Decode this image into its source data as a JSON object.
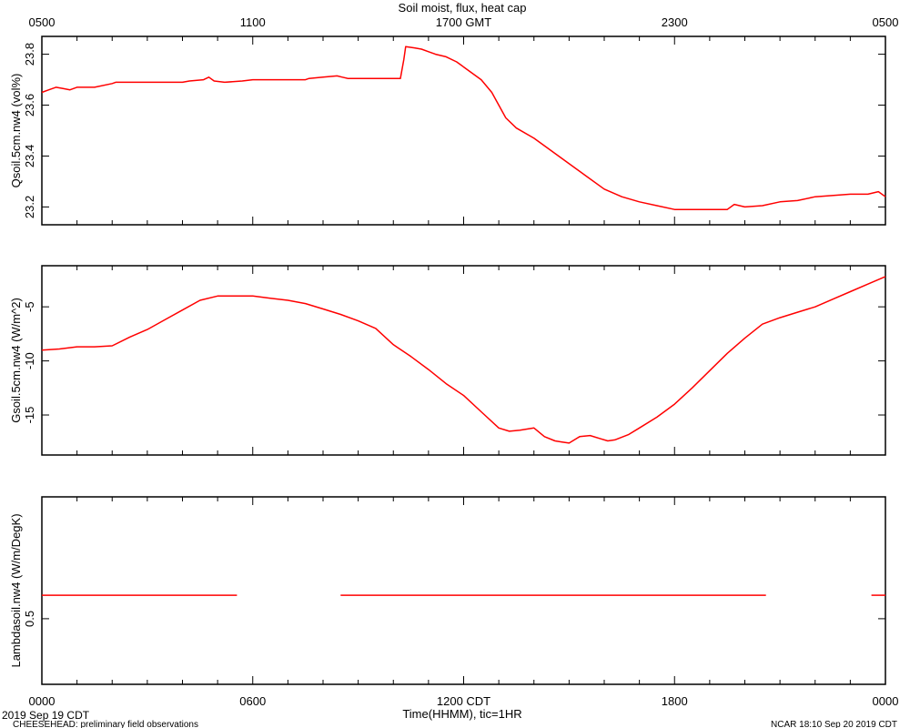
{
  "title": "Soil moist, flux, heat cap",
  "top_axis": {
    "ticks": [
      {
        "hour": 0,
        "label": "0500"
      },
      {
        "hour": 6,
        "label": "1100"
      },
      {
        "hour": 12,
        "label": "1700 GMT"
      },
      {
        "hour": 18,
        "label": "2300"
      },
      {
        "hour": 24,
        "label": "0500"
      }
    ]
  },
  "bottom_axis": {
    "ticks": [
      {
        "hour": 0,
        "label": "0000"
      },
      {
        "hour": 6,
        "label": "0600"
      },
      {
        "hour": 12,
        "label": "1200 CDT"
      },
      {
        "hour": 18,
        "label": "1800"
      },
      {
        "hour": 24,
        "label": "0000"
      }
    ],
    "xlabel": "Time(HHMM), tic=1HR"
  },
  "footer": {
    "date_left": "2019 Sep 19 CDT",
    "project": "CHEESEHEAD: preliminary field observations",
    "credit": "NCAR 18:10 Sep 20 2019 CDT"
  },
  "colors": {
    "series": "#ff0000",
    "axis": "#000000"
  },
  "chart_data": [
    {
      "type": "line",
      "ylabel": "Qsoil.5cm.nw4 (vol%)",
      "ylim": [
        23.13,
        23.87
      ],
      "yticks": [
        23.2,
        23.4,
        23.6,
        23.8
      ],
      "ytick_labels": [
        "23.2",
        "23.4",
        "23.6",
        "23.8"
      ],
      "x_unit": "hours after 0000 CDT",
      "series": [
        {
          "x": [
            0,
            0.2,
            0.4,
            0.6,
            0.8,
            1.0,
            1.2,
            1.5,
            2.0,
            2.1,
            2.3,
            3.0,
            3.5,
            4.0,
            4.2,
            4.6,
            4.75,
            4.9,
            5.2,
            5.7,
            6.0,
            6.5,
            7.0,
            7.5,
            7.6,
            8.0,
            8.4,
            8.55,
            8.7,
            9.0,
            9.5,
            10.2,
            10.3,
            10.35,
            10.6,
            10.8,
            11.0,
            11.2,
            11.5,
            11.8,
            12.0,
            12.5,
            12.8,
            13.0,
            13.2,
            13.5,
            14.0,
            14.5,
            15.0,
            15.5,
            16.0,
            16.5,
            17.0,
            17.5,
            18.0,
            18.5,
            19.0,
            19.5,
            19.7,
            20.0,
            20.5,
            21.0,
            21.5,
            22.0,
            23.0,
            23.5,
            23.8,
            24.0
          ],
          "y": [
            23.65,
            23.66,
            23.67,
            23.665,
            23.66,
            23.67,
            23.67,
            23.67,
            23.685,
            23.69,
            23.69,
            23.69,
            23.69,
            23.69,
            23.695,
            23.7,
            23.71,
            23.695,
            23.69,
            23.695,
            23.7,
            23.7,
            23.7,
            23.7,
            23.705,
            23.71,
            23.715,
            23.71,
            23.705,
            23.705,
            23.705,
            23.705,
            23.78,
            23.83,
            23.825,
            23.82,
            23.81,
            23.8,
            23.79,
            23.77,
            23.75,
            23.7,
            23.65,
            23.6,
            23.55,
            23.51,
            23.47,
            23.42,
            23.37,
            23.32,
            23.27,
            23.24,
            23.22,
            23.205,
            23.19,
            23.19,
            23.19,
            23.19,
            23.21,
            23.2,
            23.205,
            23.22,
            23.225,
            23.24,
            23.25,
            23.25,
            23.26,
            23.24
          ]
        }
      ]
    },
    {
      "type": "line",
      "ylabel": "Gsoil.5cm.nw4 (W/m^2)",
      "ylim": [
        -18.7,
        -1.2
      ],
      "yticks": [
        -15,
        -10,
        -5
      ],
      "ytick_labels": [
        "-15",
        "-10",
        "-5"
      ],
      "x_unit": "hours after 0000 CDT",
      "series": [
        {
          "x": [
            0,
            0.5,
            1.0,
            1.5,
            2.0,
            2.5,
            3.0,
            3.5,
            4.0,
            4.5,
            5.0,
            5.5,
            6.0,
            6.5,
            7.0,
            7.5,
            8.0,
            8.5,
            9.0,
            9.5,
            10.0,
            10.5,
            11.0,
            11.5,
            12.0,
            12.5,
            13.0,
            13.3,
            13.6,
            14.0,
            14.3,
            14.6,
            14.8,
            15.0,
            15.3,
            15.6,
            15.9,
            16.1,
            16.3,
            16.7,
            17.0,
            17.5,
            18.0,
            18.5,
            19.0,
            19.5,
            20.0,
            20.5,
            21.0,
            21.5,
            22.0,
            22.5,
            23.0,
            23.5,
            24.0
          ],
          "y": [
            -9.0,
            -8.9,
            -8.7,
            -8.7,
            -8.6,
            -7.8,
            -7.1,
            -6.2,
            -5.3,
            -4.4,
            -4.0,
            -4.0,
            -4.0,
            -4.2,
            -4.4,
            -4.7,
            -5.2,
            -5.7,
            -6.3,
            -7.0,
            -8.5,
            -9.6,
            -10.8,
            -12.1,
            -13.2,
            -14.7,
            -16.2,
            -16.5,
            -16.4,
            -16.2,
            -17.0,
            -17.4,
            -17.5,
            -17.6,
            -17.0,
            -16.9,
            -17.2,
            -17.4,
            -17.3,
            -16.8,
            -16.2,
            -15.2,
            -14.0,
            -12.5,
            -10.9,
            -9.3,
            -7.9,
            -6.6,
            -6.0,
            -5.5,
            -5.0,
            -4.3,
            -3.6,
            -2.9,
            -2.2
          ]
        }
      ]
    },
    {
      "type": "line",
      "ylabel": "Lambdasoil.nw4 (W/m/DegK)",
      "ylim": [
        0.36,
        0.76
      ],
      "yticks": [
        0.5
      ],
      "ytick_labels": [
        "0.5"
      ],
      "x_unit": "hours after 0000 CDT",
      "series": [
        {
          "segments": [
            {
              "x": [
                0,
                5.55
              ],
              "y": [
                0.55,
                0.55
              ]
            },
            {
              "x": [
                8.5,
                20.6
              ],
              "y": [
                0.55,
                0.55
              ]
            },
            {
              "x": [
                23.6,
                24
              ],
              "y": [
                0.55,
                0.55
              ]
            }
          ]
        }
      ]
    }
  ]
}
